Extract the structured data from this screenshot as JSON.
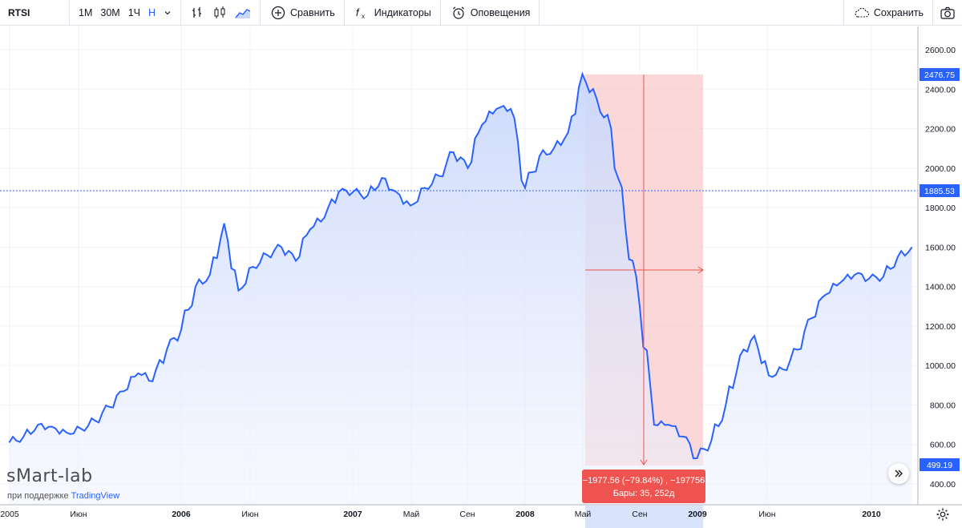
{
  "toolbar": {
    "symbol": "RTSI",
    "intervals": [
      "1М",
      "30М",
      "1Ч",
      "Н"
    ],
    "active_interval": "Н",
    "compare_label": "Сравнить",
    "indicators_label": "Индикаторы",
    "alerts_label": "Оповещения",
    "save_label": "Сохранить",
    "icons": [
      "chevron-down-icon",
      "bar-chart-icon",
      "candlestick-icon",
      "area-chart-icon",
      "plus-circle-icon",
      "fx-icon",
      "alarm-clock-icon",
      "cloud-icon",
      "camera-icon"
    ]
  },
  "price_axis": {
    "ticks": [
      "2600.00",
      "2400.00",
      "2200.00",
      "2000.00",
      "1800.00",
      "1600.00",
      "1400.00",
      "1200.00",
      "1000.00",
      "800.00",
      "600.00",
      "400.00"
    ],
    "high_label": "2476.75",
    "crosshair_label": "1885.53",
    "last_label": "499.19"
  },
  "time_axis": {
    "labels": [
      "2005",
      "Июн",
      "2006",
      "Июн",
      "2007",
      "Май",
      "Сен",
      "2008",
      "Май",
      "Сен",
      "2009",
      "Июн",
      "2010"
    ],
    "bold": [
      "2006",
      "2007",
      "2008",
      "2009",
      "2010"
    ]
  },
  "measure": {
    "line1": "−1977.56 (−79.84%) , −197756",
    "line2": "Бары: 35, 252д"
  },
  "watermark": {
    "logo": "sMart-lab",
    "powered_prefix": "при поддержке ",
    "powered_brand": "TradingView"
  },
  "colors": {
    "line": "#2962ff",
    "area_top": "#c9d7fb",
    "measure_fill": "#f8c3c3",
    "measure_accent": "#ef5350",
    "label_bg": "#2962ff",
    "crosshair": "#2962ff"
  },
  "chart_data": {
    "type": "area",
    "title": "",
    "xlabel": "",
    "ylabel": "",
    "ylim": [
      400,
      2600
    ],
    "series": [
      {
        "name": "",
        "x": [
          "2005-01",
          "2005-02",
          "2005-03",
          "2005-04",
          "2005-05",
          "2005-06",
          "2005-07",
          "2005-08",
          "2005-09",
          "2005-10",
          "2005-11",
          "2005-12",
          "2006-01",
          "2006-02",
          "2006-03",
          "2006-04",
          "2006-05",
          "2006-06",
          "2006-07",
          "2006-08",
          "2006-09",
          "2006-10",
          "2006-11",
          "2006-12",
          "2007-01",
          "2007-02",
          "2007-03",
          "2007-04",
          "2007-05",
          "2007-06",
          "2007-07",
          "2007-08",
          "2007-09",
          "2007-10",
          "2007-11",
          "2007-12",
          "2008-01",
          "2008-02",
          "2008-03",
          "2008-04",
          "2008-05",
          "2008-06",
          "2008-07",
          "2008-08",
          "2008-09",
          "2008-10",
          "2008-11",
          "2008-12",
          "2009-01",
          "2009-02",
          "2009-03",
          "2009-04",
          "2009-05",
          "2009-06",
          "2009-07",
          "2009-08",
          "2009-09",
          "2009-10",
          "2009-11",
          "2009-12",
          "2010-01",
          "2010-02",
          "2010-03",
          "2010-04"
        ],
        "values": [
          610,
          640,
          700,
          690,
          660,
          680,
          720,
          790,
          870,
          960,
          920,
          1080,
          1180,
          1400,
          1460,
          1720,
          1380,
          1500,
          1560,
          1600,
          1530,
          1690,
          1750,
          1880,
          1880,
          1860,
          1950,
          1880,
          1810,
          1900,
          1960,
          2080,
          2000,
          2220,
          2300,
          2300,
          1900,
          2060,
          2100,
          2180,
          2476,
          2350,
          2200,
          1700,
          1300,
          700,
          700,
          640,
          530,
          620,
          800,
          1050,
          1150,
          950,
          980,
          1080,
          1240,
          1360,
          1420,
          1460,
          1440,
          1450,
          1550,
          1600
        ]
      }
    ]
  }
}
